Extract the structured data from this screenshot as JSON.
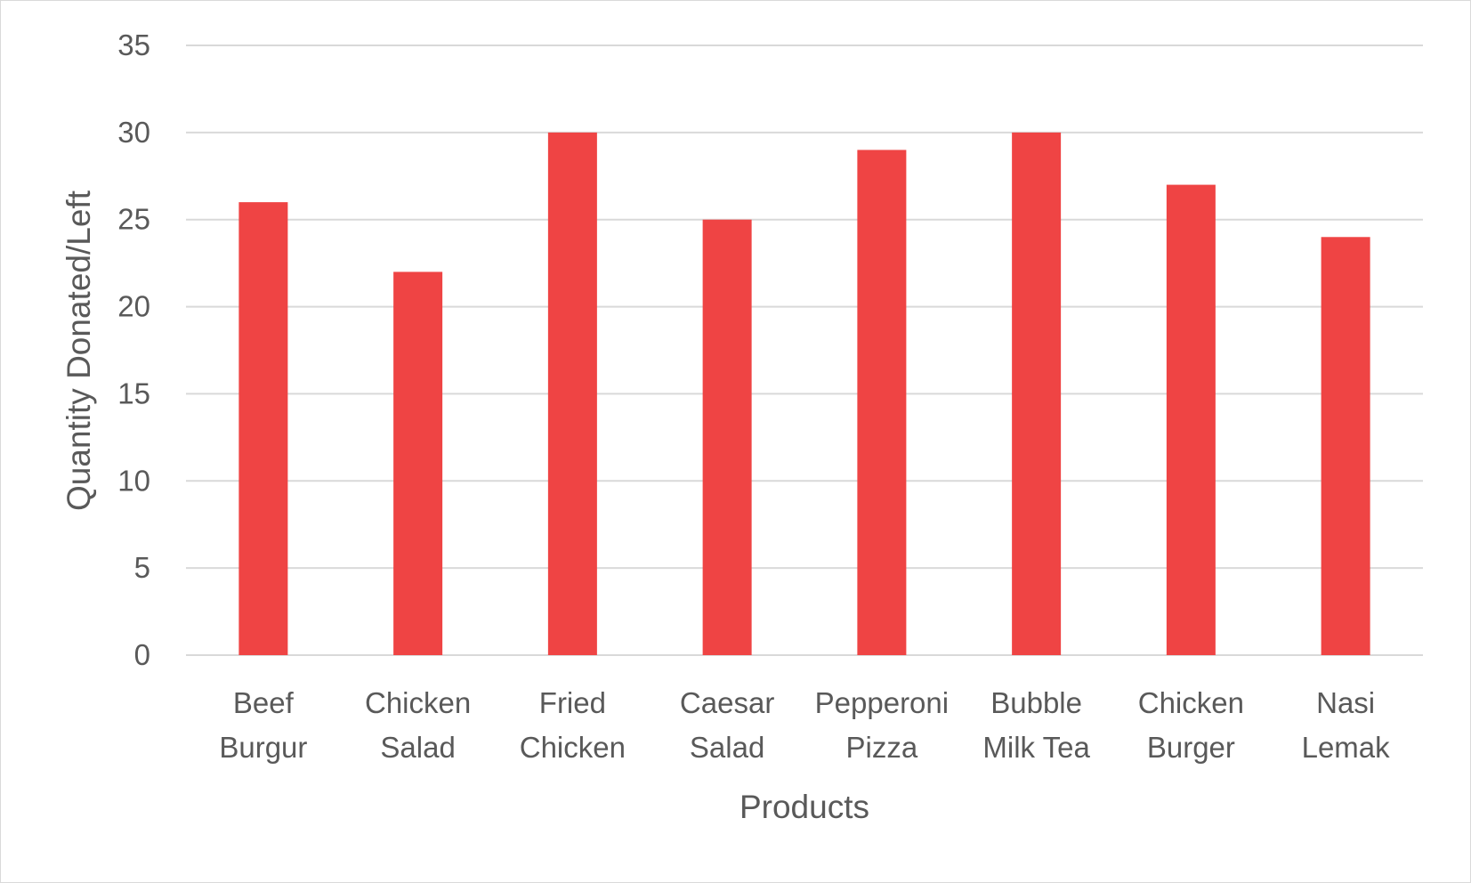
{
  "chart_data": {
    "type": "bar",
    "categories": [
      [
        "Beef",
        "Burgur"
      ],
      [
        "Chicken",
        "Salad"
      ],
      [
        "Fried",
        "Chicken"
      ],
      [
        "Caesar",
        "Salad"
      ],
      [
        "Pepperoni",
        "Pizza"
      ],
      [
        "Bubble",
        "Milk Tea"
      ],
      [
        "Chicken",
        "Burger"
      ],
      [
        "Nasi",
        "Lemak"
      ]
    ],
    "values": [
      26,
      22,
      30,
      25,
      29,
      30,
      27,
      24
    ],
    "xlabel": "Products",
    "ylabel": "Quantity Donated/Left",
    "ylim": [
      0,
      35
    ],
    "yticks": [
      0,
      5,
      10,
      15,
      20,
      25,
      30,
      35
    ],
    "grid": true,
    "legend": "none",
    "bar_color": "#ef4444"
  }
}
